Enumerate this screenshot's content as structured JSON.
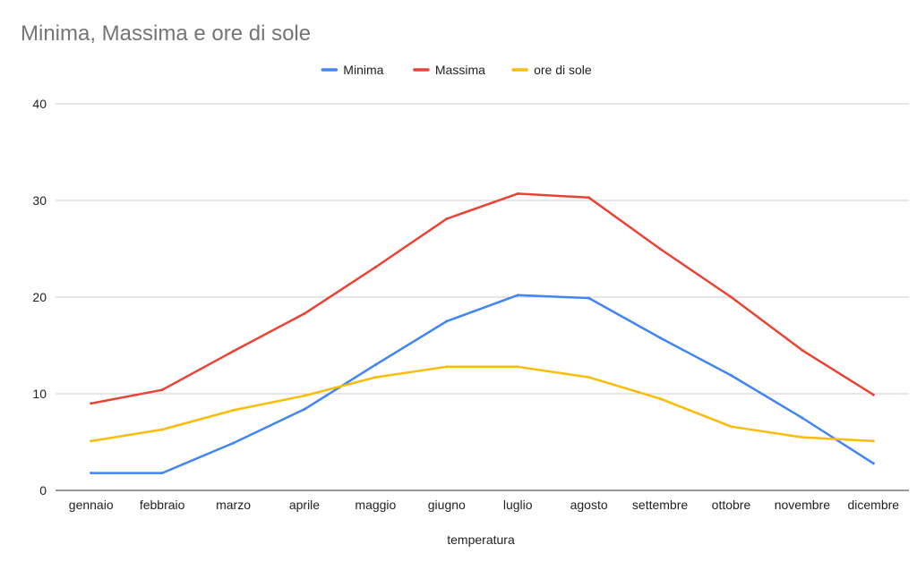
{
  "chart_data": {
    "type": "line",
    "title": "Minima, Massima e ore di sole",
    "xlabel": "temperatura",
    "ylabel": "",
    "ylim": [
      0,
      40
    ],
    "yticks": [
      "0",
      "10",
      "20",
      "30",
      "40"
    ],
    "grid": true,
    "legend_position": "top",
    "categories": [
      "gennaio",
      "febbraio",
      "marzo",
      "aprile",
      "maggio",
      "giugno",
      "luglio",
      "agosto",
      "settembre",
      "ottobre",
      "novembre",
      "dicembre"
    ],
    "series": [
      {
        "name": "Minima",
        "color": "#4285f4",
        "values": [
          1.8,
          1.8,
          4.9,
          8.4,
          13.0,
          17.5,
          20.2,
          19.9,
          15.8,
          11.9,
          7.5,
          2.8
        ]
      },
      {
        "name": "Massima",
        "color": "#ea4335",
        "values": [
          9.0,
          10.4,
          14.4,
          18.3,
          23.1,
          28.1,
          30.7,
          30.3,
          25.0,
          20.0,
          14.5,
          9.9
        ]
      },
      {
        "name": "ore di sole",
        "color": "#fbbc04",
        "values": [
          5.1,
          6.3,
          8.3,
          9.8,
          11.7,
          12.8,
          12.8,
          11.7,
          9.5,
          6.6,
          5.5,
          5.1
        ]
      }
    ]
  }
}
